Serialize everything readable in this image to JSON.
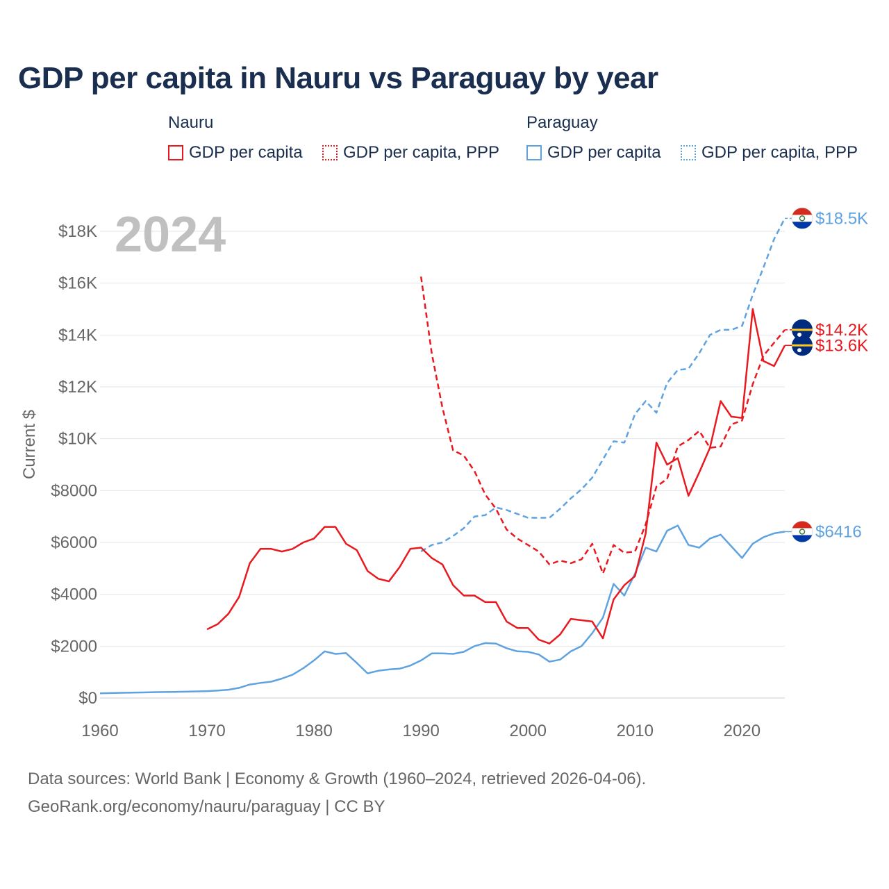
{
  "title": "GDP per capita in Nauru vs Paraguay by year",
  "legend": {
    "groups": [
      {
        "name": "Nauru",
        "items": [
          "GDP per capita",
          "GDP per capita, PPP"
        ]
      },
      {
        "name": "Paraguay",
        "items": [
          "GDP per capita",
          "GDP per capita, PPP"
        ]
      }
    ]
  },
  "colors": {
    "nauru": "#e8191f",
    "paraguay": "#5fa2e0",
    "grid": "#e6e6e6",
    "year": "#c0c0c0",
    "axis_text": "#666666",
    "title": "#1a2e4f"
  },
  "footer": {
    "line1": "Data sources: World Bank | Economy & Growth (1960–2024, retrieved 2026-04-06).",
    "line2": "GeoRank.org/economy/nauru/paraguay | CC BY"
  },
  "chart_data": {
    "type": "line",
    "year_label": "2024",
    "ylabel": "Current $",
    "xlim": [
      1960,
      2024
    ],
    "ylim": [
      0,
      18000
    ],
    "x_ticks": [
      "1960",
      "1970",
      "1980",
      "1990",
      "2000",
      "2010",
      "2020"
    ],
    "y_ticks": [
      "$0",
      "$2000",
      "$4000",
      "$6000",
      "$8000",
      "$10K",
      "$12K",
      "$14K",
      "$16K",
      "$18K"
    ],
    "series": [
      {
        "name": "Paraguay GDP per capita",
        "country": "paraguay",
        "dashed": false,
        "end_label": "$6416",
        "x": [
          1960,
          1961,
          1962,
          1963,
          1964,
          1965,
          1966,
          1967,
          1968,
          1969,
          1970,
          1971,
          1972,
          1973,
          1974,
          1975,
          1976,
          1977,
          1978,
          1979,
          1980,
          1981,
          1982,
          1983,
          1984,
          1985,
          1986,
          1987,
          1988,
          1989,
          1990,
          1991,
          1992,
          1993,
          1994,
          1995,
          1996,
          1997,
          1998,
          1999,
          2000,
          2001,
          2002,
          2003,
          2004,
          2005,
          2006,
          2007,
          2008,
          2009,
          2010,
          2011,
          2012,
          2013,
          2014,
          2015,
          2016,
          2017,
          2018,
          2019,
          2020,
          2021,
          2022,
          2023,
          2024
        ],
        "values": [
          180,
          190,
          200,
          210,
          215,
          225,
          230,
          235,
          245,
          255,
          265,
          290,
          320,
          390,
          520,
          580,
          630,
          750,
          900,
          1150,
          1450,
          1800,
          1700,
          1730,
          1350,
          950,
          1050,
          1100,
          1130,
          1250,
          1450,
          1720,
          1720,
          1700,
          1780,
          2000,
          2120,
          2100,
          1920,
          1800,
          1780,
          1680,
          1400,
          1480,
          1800,
          2000,
          2500,
          3100,
          4400,
          3950,
          4800,
          5800,
          5650,
          6450,
          6650,
          5900,
          5800,
          6150,
          6300,
          5850,
          5400,
          5950,
          6200,
          6350,
          6416
        ]
      },
      {
        "name": "Paraguay GDP per capita, PPP",
        "country": "paraguay",
        "dashed": true,
        "end_label": "$18.5K",
        "x": [
          1990,
          1991,
          1992,
          1993,
          1994,
          1995,
          1996,
          1997,
          1998,
          1999,
          2000,
          2001,
          2002,
          2003,
          2004,
          2005,
          2006,
          2007,
          2008,
          2009,
          2010,
          2011,
          2012,
          2013,
          2014,
          2015,
          2016,
          2017,
          2018,
          2019,
          2020,
          2021,
          2022,
          2023,
          2024
        ],
        "values": [
          5650,
          5900,
          6000,
          6250,
          6550,
          7000,
          7050,
          7350,
          7250,
          7100,
          6950,
          6950,
          6950,
          7300,
          7700,
          8050,
          8500,
          9200,
          9900,
          9850,
          10950,
          11450,
          11000,
          12150,
          12650,
          12700,
          13300,
          14000,
          14200,
          14200,
          14350,
          15550,
          16600,
          17700,
          18500
        ]
      },
      {
        "name": "Nauru GDP per capita",
        "country": "nauru",
        "dashed": false,
        "end_label": "$13.6K",
        "x": [
          1970,
          1971,
          1972,
          1973,
          1974,
          1975,
          1976,
          1977,
          1978,
          1979,
          1980,
          1981,
          1982,
          1983,
          1984,
          1985,
          1986,
          1987,
          1988,
          1989,
          1990,
          1991,
          1992,
          1993,
          1994,
          1995,
          1996,
          1997,
          1998,
          1999,
          2000,
          2001,
          2002,
          2003,
          2004,
          2005,
          2006,
          2007,
          2008,
          2009,
          2010,
          2011,
          2012,
          2013,
          2014,
          2015,
          2016,
          2017,
          2018,
          2019,
          2020,
          2021,
          2022,
          2023,
          2024
        ],
        "values": [
          2650,
          2850,
          3250,
          3900,
          5200,
          5750,
          5750,
          5650,
          5750,
          6000,
          6150,
          6600,
          6600,
          5950,
          5700,
          4900,
          4600,
          4500,
          5050,
          5750,
          5800,
          5400,
          5150,
          4350,
          3950,
          3950,
          3700,
          3700,
          2950,
          2700,
          2700,
          2250,
          2100,
          2450,
          3050,
          3000,
          2950,
          2300,
          3800,
          4350,
          4700,
          6350,
          9850,
          9000,
          9250,
          7800,
          8700,
          9650,
          11450,
          10850,
          10800,
          15000,
          13000,
          12800,
          13600
        ]
      },
      {
        "name": "Nauru GDP per capita, PPP",
        "country": "nauru",
        "dashed": true,
        "end_label": "$14.2K",
        "x": [
          1990,
          1991,
          1992,
          1993,
          1994,
          1995,
          1996,
          1997,
          1998,
          1999,
          2000,
          2001,
          2002,
          2003,
          2004,
          2005,
          2006,
          2007,
          2008,
          2009,
          2010,
          2011,
          2012,
          2013,
          2014,
          2015,
          2016,
          2017,
          2018,
          2019,
          2020,
          2021,
          2022,
          2023,
          2024
        ],
        "values": [
          16250,
          13300,
          11200,
          9550,
          9350,
          8750,
          7850,
          7300,
          6500,
          6150,
          5900,
          5650,
          5150,
          5300,
          5200,
          5350,
          5950,
          4800,
          5900,
          5600,
          5650,
          6700,
          8150,
          8450,
          9700,
          9950,
          10300,
          9650,
          9700,
          10550,
          10700,
          12100,
          13200,
          13700,
          14200
        ]
      }
    ]
  }
}
